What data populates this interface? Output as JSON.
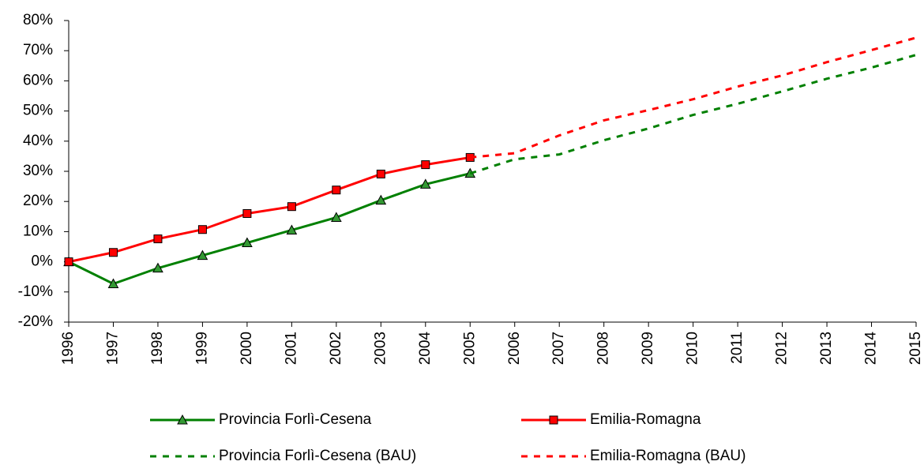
{
  "chart_data": {
    "type": "line",
    "x": [
      1996,
      1997,
      1998,
      1999,
      2000,
      2001,
      2002,
      2003,
      2004,
      2005,
      2006,
      2007,
      2008,
      2009,
      2010,
      2011,
      2012,
      2013,
      2014,
      2015
    ],
    "xlim": [
      1996,
      2015
    ],
    "xticks": [
      1996,
      1997,
      1998,
      1999,
      2000,
      2001,
      2002,
      2003,
      2004,
      2005,
      2006,
      2007,
      2008,
      2009,
      2010,
      2011,
      2012,
      2013,
      2014,
      2015
    ],
    "ylim": [
      -20,
      80
    ],
    "yticks": [
      {
        "value": -20,
        "label": "-20%"
      },
      {
        "value": -10,
        "label": "-10%"
      },
      {
        "value": 0,
        "label": "0%"
      },
      {
        "value": 10,
        "label": "10%"
      },
      {
        "value": 20,
        "label": "20%"
      },
      {
        "value": 30,
        "label": "30%"
      },
      {
        "value": 40,
        "label": "40%"
      },
      {
        "value": 50,
        "label": "50%"
      },
      {
        "value": 60,
        "label": "60%"
      },
      {
        "value": 70,
        "label": "70%"
      },
      {
        "value": 80,
        "label": "80%"
      }
    ],
    "grid": false,
    "legend": "bottom",
    "series": [
      {
        "name": "Provincia Forlì-Cesena",
        "color": "#008000",
        "style": "solid",
        "marker": "triangle",
        "marker_color": "#339933",
        "values": [
          0,
          -7.3,
          -2.1,
          2.1,
          6.3,
          10.5,
          14.7,
          20.4,
          25.7,
          29.3,
          null,
          null,
          null,
          null,
          null,
          null,
          null,
          null,
          null,
          null
        ]
      },
      {
        "name": "Emilia-Romagna",
        "color": "#ff0000",
        "style": "solid",
        "marker": "square",
        "marker_color": "#ff0000",
        "values": [
          0,
          3.1,
          7.6,
          10.7,
          16.0,
          18.3,
          23.8,
          29.1,
          32.2,
          34.6,
          null,
          null,
          null,
          null,
          null,
          null,
          null,
          null,
          null,
          null
        ]
      },
      {
        "name": "Provincia Forlì-Cesena (BAU)",
        "color": "#008000",
        "style": "dashed",
        "values": [
          null,
          null,
          null,
          null,
          null,
          null,
          null,
          null,
          null,
          29.3,
          34,
          35.6,
          40.3,
          44.2,
          48.7,
          52.4,
          56.5,
          60.7,
          64.4,
          68.6
        ]
      },
      {
        "name": "Emilia-Romagna (BAU)",
        "color": "#ff0000",
        "style": "dashed",
        "values": [
          null,
          null,
          null,
          null,
          null,
          null,
          null,
          null,
          null,
          34.6,
          36,
          41.9,
          46.9,
          50.3,
          53.9,
          58.1,
          61.8,
          66.2,
          70.2,
          74.3
        ]
      }
    ]
  }
}
